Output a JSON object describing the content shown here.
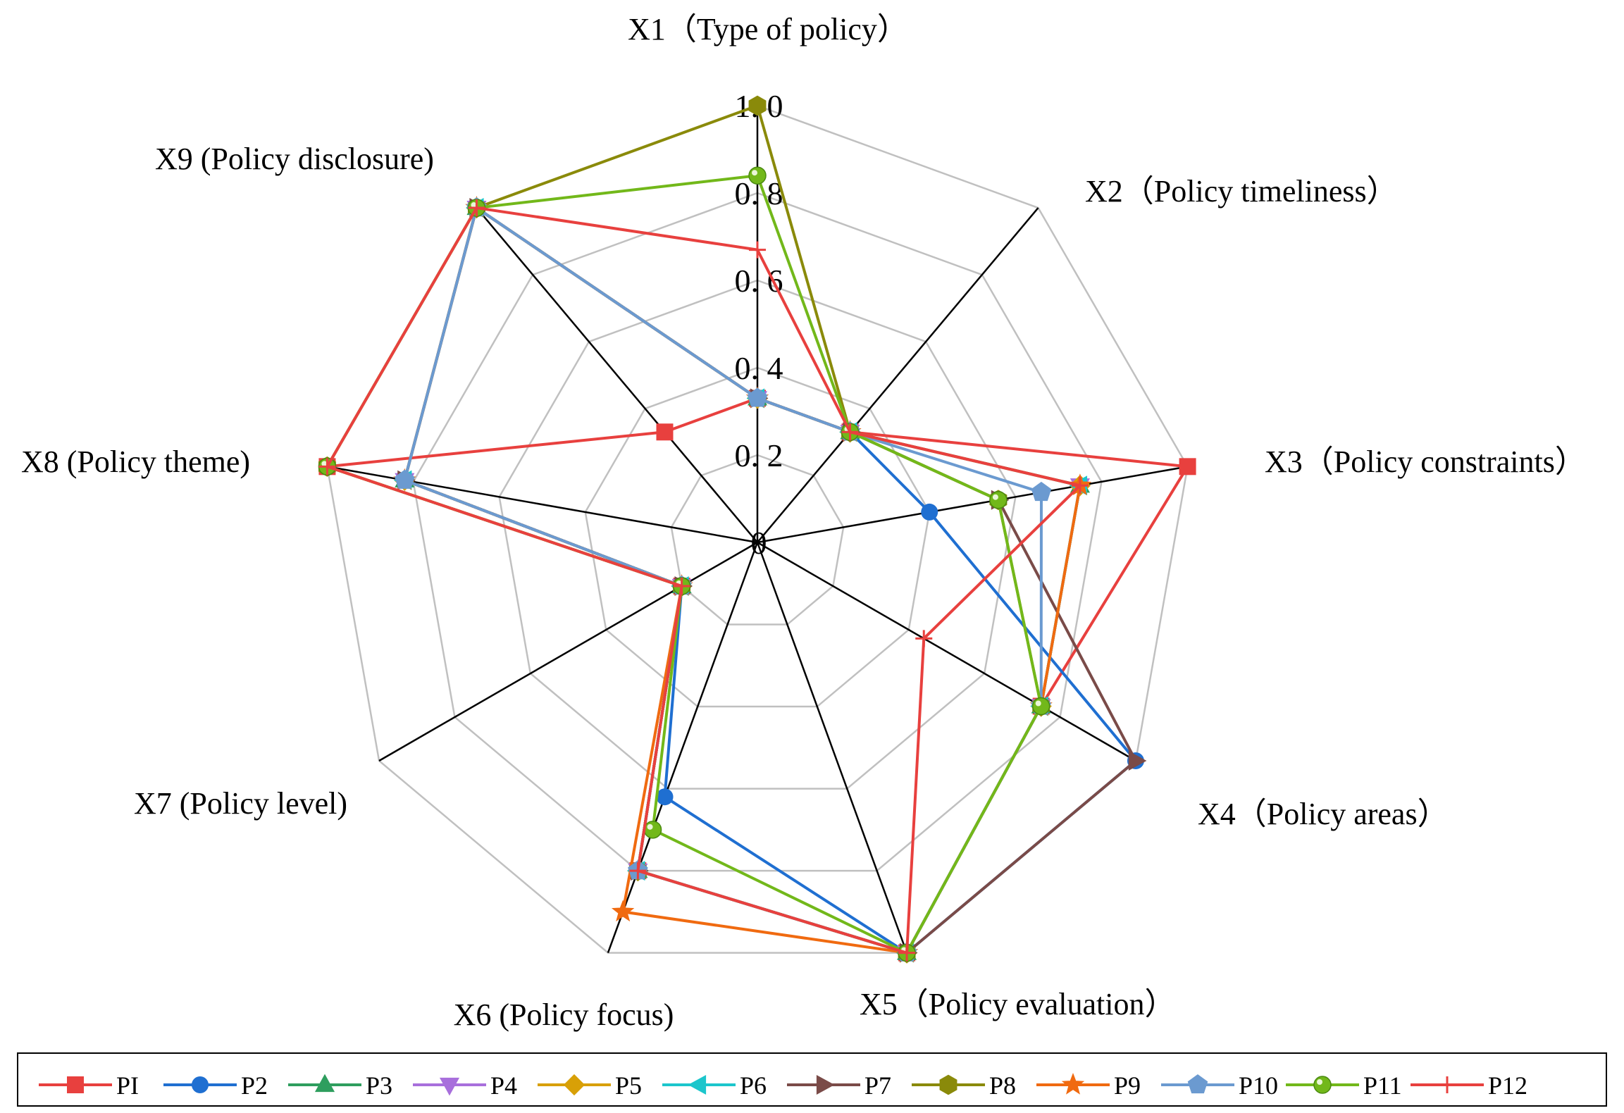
{
  "chart_data": {
    "type": "radar",
    "axes": [
      "X1（Type of policy）",
      "X2（Policy timeliness）",
      "X3（Policy constraints）",
      "X4（Policy areas）",
      "X5（Policy evaluation）",
      "X6 (Policy focus)",
      "X7 (Policy level)",
      "X8 (Policy theme)",
      "X9 (Policy disclosure)"
    ],
    "ticks": [
      "0",
      "0. 2",
      "0. 4",
      "0. 6",
      "0. 8",
      "1. 0"
    ],
    "tick_values": [
      0,
      0.2,
      0.4,
      0.6,
      0.8,
      1.0
    ],
    "range": [
      0,
      1
    ],
    "series": [
      {
        "name": "PI",
        "color": "#e8403e",
        "marker": "square",
        "values": [
          0.33,
          0.33,
          1.0,
          0.75,
          1.0,
          0.8,
          0.2,
          1.0,
          0.33
        ]
      },
      {
        "name": "P2",
        "color": "#1f6fd1",
        "marker": "circle",
        "values": [
          0.33,
          0.33,
          0.4,
          1.0,
          1.0,
          0.62,
          0.2,
          0.82,
          1.0
        ]
      },
      {
        "name": "P3",
        "color": "#2e9e5e",
        "marker": "triangle",
        "values": [
          0.33,
          0.33,
          0.75,
          0.75,
          1.0,
          0.8,
          0.2,
          0.82,
          1.0
        ]
      },
      {
        "name": "P4",
        "color": "#a86fdc",
        "marker": "tri-down",
        "values": [
          0.33,
          0.33,
          0.75,
          0.75,
          1.0,
          0.8,
          0.2,
          0.82,
          1.0
        ]
      },
      {
        "name": "P5",
        "color": "#d8a007",
        "marker": "diamond",
        "values": [
          0.33,
          0.33,
          0.75,
          0.75,
          1.0,
          0.8,
          0.2,
          0.82,
          1.0
        ]
      },
      {
        "name": "P6",
        "color": "#1cc6cc",
        "marker": "tri-left",
        "values": [
          0.33,
          0.33,
          0.75,
          0.75,
          1.0,
          0.8,
          0.2,
          0.82,
          1.0
        ]
      },
      {
        "name": "P7",
        "color": "#7a4b48",
        "marker": "tri-right",
        "values": [
          0.33,
          0.33,
          0.56,
          1.0,
          1.0,
          0.8,
          0.2,
          0.82,
          1.0
        ]
      },
      {
        "name": "P8",
        "color": "#8a8a0a",
        "marker": "hexagon",
        "values": [
          1.0,
          0.33,
          0.56,
          0.75,
          1.0,
          0.8,
          0.2,
          1.0,
          1.0
        ]
      },
      {
        "name": "P9",
        "color": "#f06a10",
        "marker": "star",
        "values": [
          0.33,
          0.33,
          0.75,
          0.75,
          1.0,
          0.9,
          0.2,
          0.82,
          1.0
        ]
      },
      {
        "name": "P10",
        "color": "#6b9ad0",
        "marker": "pentagon",
        "values": [
          0.33,
          0.33,
          0.66,
          0.75,
          1.0,
          0.8,
          0.2,
          0.82,
          1.0
        ]
      },
      {
        "name": "P11",
        "color": "#72b81a",
        "marker": "ball",
        "values": [
          0.84,
          0.33,
          0.56,
          0.75,
          1.0,
          0.7,
          0.2,
          1.0,
          1.0
        ]
      },
      {
        "name": "P12",
        "color": "#e8403e",
        "marker": "plus",
        "values": [
          0.67,
          0.33,
          0.75,
          0.44,
          1.0,
          0.8,
          0.2,
          1.0,
          1.0
        ]
      }
    ]
  }
}
